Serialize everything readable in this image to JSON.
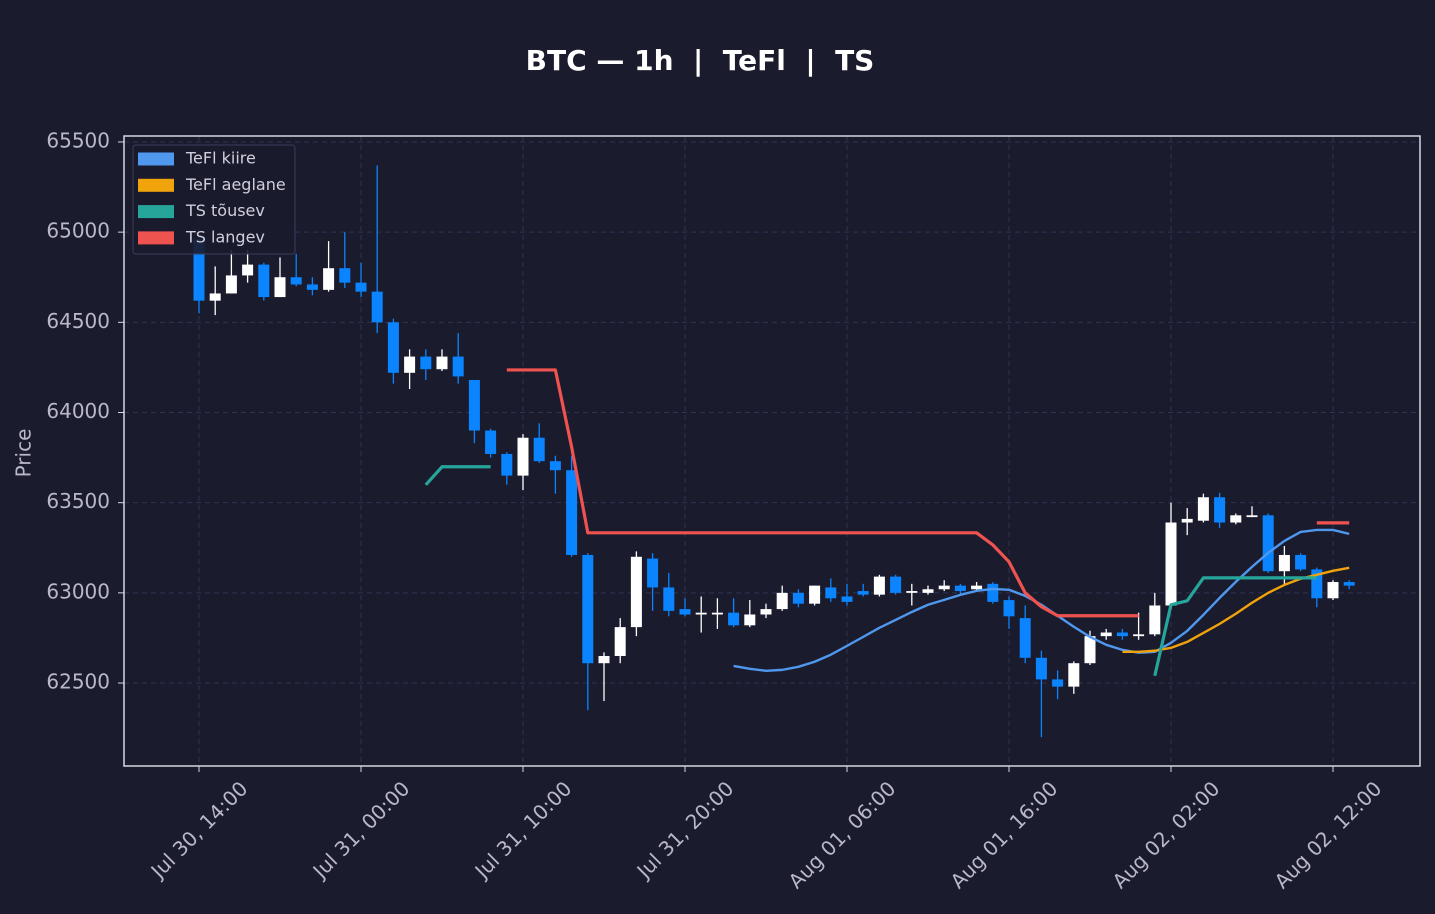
{
  "chart_data": {
    "type": "candlestick",
    "title": "BTC — 1h  |  TeFl  |  TS",
    "ylabel": "Price",
    "x": [
      "Jul 30, 14:00",
      "Jul 30, 15:00",
      "Jul 30, 16:00",
      "Jul 30, 17:00",
      "Jul 30, 18:00",
      "Jul 30, 19:00",
      "Jul 30, 20:00",
      "Jul 30, 21:00",
      "Jul 30, 22:00",
      "Jul 30, 23:00",
      "Jul 31, 00:00",
      "Jul 31, 01:00",
      "Jul 31, 02:00",
      "Jul 31, 03:00",
      "Jul 31, 04:00",
      "Jul 31, 05:00",
      "Jul 31, 06:00",
      "Jul 31, 07:00",
      "Jul 31, 08:00",
      "Jul 31, 09:00",
      "Jul 31, 10:00",
      "Jul 31, 11:00",
      "Jul 31, 12:00",
      "Jul 31, 13:00",
      "Jul 31, 14:00",
      "Jul 31, 15:00",
      "Jul 31, 16:00",
      "Jul 31, 17:00",
      "Jul 31, 18:00",
      "Jul 31, 19:00",
      "Jul 31, 20:00",
      "Jul 31, 21:00",
      "Jul 31, 22:00",
      "Jul 31, 23:00",
      "Aug 01, 00:00",
      "Aug 01, 01:00",
      "Aug 01, 02:00",
      "Aug 01, 03:00",
      "Aug 01, 04:00",
      "Aug 01, 05:00",
      "Aug 01, 06:00",
      "Aug 01, 07:00",
      "Aug 01, 08:00",
      "Aug 01, 09:00",
      "Aug 01, 10:00",
      "Aug 01, 11:00",
      "Aug 01, 12:00",
      "Aug 01, 13:00",
      "Aug 01, 14:00",
      "Aug 01, 15:00",
      "Aug 01, 16:00",
      "Aug 01, 17:00",
      "Aug 01, 18:00",
      "Aug 01, 19:00",
      "Aug 01, 20:00",
      "Aug 01, 21:00",
      "Aug 01, 22:00",
      "Aug 01, 23:00",
      "Aug 02, 00:00",
      "Aug 02, 01:00",
      "Aug 02, 02:00",
      "Aug 02, 03:00",
      "Aug 02, 04:00",
      "Aug 02, 05:00",
      "Aug 02, 06:00",
      "Aug 02, 07:00",
      "Aug 02, 08:00",
      "Aug 02, 09:00",
      "Aug 02, 10:00",
      "Aug 02, 11:00",
      "Aug 02, 12:00",
      "Aug 02, 13:00"
    ],
    "open": [
      64960,
      64620,
      64660,
      64760,
      64820,
      64640,
      64750,
      64710,
      64680,
      64800,
      64720,
      64670,
      64500,
      64220,
      64310,
      64240,
      64310,
      64180,
      63900,
      63770,
      63650,
      63860,
      63730,
      63680,
      63210,
      62610,
      62650,
      62810,
      63190,
      63030,
      62910,
      62880,
      62880,
      62890,
      62820,
      62880,
      62910,
      63000,
      62940,
      63030,
      62980,
      63010,
      62990,
      63090,
      63000,
      63000,
      63020,
      63040,
      63020,
      63050,
      62960,
      62860,
      62640,
      62520,
      62480,
      62610,
      62760,
      62780,
      62760,
      62770,
      62930,
      63390,
      63400,
      63530,
      63390,
      63420,
      63430,
      63120,
      63210,
      63130,
      62970,
      63060
    ],
    "high": [
      64980,
      64810,
      64900,
      64900,
      64830,
      64860,
      64880,
      64750,
      64950,
      65000,
      64830,
      65370,
      64520,
      64350,
      64350,
      64350,
      64440,
      64180,
      63910,
      63780,
      63880,
      63940,
      63760,
      63760,
      63220,
      62670,
      62860,
      63230,
      63220,
      63110,
      62970,
      62980,
      62970,
      62970,
      62960,
      62940,
      63040,
      63020,
      63040,
      63080,
      63050,
      63050,
      63100,
      63100,
      63050,
      63040,
      63070,
      63050,
      63060,
      63060,
      62980,
      62930,
      62680,
      62570,
      62620,
      62790,
      62800,
      62800,
      62890,
      63000,
      63500,
      63470,
      63550,
      63555,
      63440,
      63480,
      63440,
      63260,
      63220,
      63140,
      63070,
      63070
    ],
    "low": [
      64550,
      64540,
      64660,
      64720,
      64620,
      64640,
      64700,
      64650,
      64670,
      64690,
      64640,
      64440,
      64160,
      64130,
      64180,
      64230,
      64160,
      63830,
      63750,
      63600,
      63570,
      63720,
      63550,
      63200,
      62350,
      62400,
      62610,
      62760,
      62900,
      62870,
      62870,
      62780,
      62800,
      62810,
      62810,
      62860,
      62900,
      62920,
      62930,
      62950,
      62930,
      62980,
      62980,
      62990,
      62930,
      62990,
      63010,
      62990,
      63010,
      62940,
      62800,
      62610,
      62200,
      62410,
      62440,
      62600,
      62740,
      62740,
      62740,
      62760,
      62910,
      63320,
      63390,
      63360,
      63380,
      63420,
      63110,
      63040,
      63120,
      62920,
      62960,
      63020
    ],
    "close": [
      64620,
      64660,
      64760,
      64820,
      64640,
      64750,
      64710,
      64680,
      64800,
      64720,
      64670,
      64500,
      64220,
      64310,
      64240,
      64310,
      64200,
      63900,
      63770,
      63650,
      63860,
      63730,
      63680,
      63210,
      62610,
      62650,
      62810,
      63200,
      63030,
      62900,
      62880,
      62890,
      62890,
      62820,
      62880,
      62910,
      63000,
      62940,
      63040,
      62970,
      62950,
      62990,
      63090,
      63000,
      63010,
      63020,
      63040,
      63010,
      63040,
      62950,
      62870,
      62640,
      62520,
      62480,
      62610,
      62760,
      62780,
      62760,
      62770,
      62930,
      63390,
      63410,
      63530,
      63390,
      63430,
      63430,
      63120,
      63210,
      63130,
      62970,
      63060,
      63040
    ],
    "up_color": "#ffffff",
    "down_color": "#0a84ff",
    "series": [
      {
        "name": "TeFl kiire",
        "color": "#4f98ee",
        "values": [
          null,
          null,
          null,
          null,
          null,
          null,
          null,
          null,
          null,
          null,
          null,
          null,
          null,
          null,
          null,
          null,
          null,
          null,
          null,
          null,
          null,
          null,
          null,
          null,
          null,
          null,
          null,
          null,
          null,
          null,
          null,
          null,
          null,
          62595,
          62579,
          62568,
          62573,
          62590,
          62618,
          62657,
          62706,
          62756,
          62806,
          62850,
          62894,
          62934,
          62961,
          62989,
          63011,
          63022,
          63017,
          62983,
          62934,
          62873,
          62812,
          62756,
          62712,
          62684,
          62668,
          62673,
          62723,
          62789,
          62878,
          62972,
          63061,
          63144,
          63222,
          63288,
          63338,
          63349,
          63349,
          63327
        ]
      },
      {
        "name": "TeFl aeglane",
        "color": "#f0a30a",
        "values": [
          null,
          null,
          null,
          null,
          null,
          null,
          null,
          null,
          null,
          null,
          null,
          null,
          null,
          null,
          null,
          null,
          null,
          null,
          null,
          null,
          null,
          null,
          null,
          null,
          null,
          null,
          null,
          null,
          null,
          null,
          null,
          null,
          null,
          null,
          null,
          null,
          null,
          null,
          null,
          null,
          null,
          null,
          null,
          null,
          null,
          null,
          null,
          null,
          null,
          null,
          null,
          null,
          null,
          null,
          null,
          null,
          null,
          62673,
          62673,
          62679,
          62695,
          62728,
          62778,
          62828,
          62884,
          62945,
          63000,
          63044,
          63078,
          63100,
          63122,
          63139
        ]
      },
      {
        "name": "TS tõusev",
        "color": "#26a69a",
        "values": [
          null,
          null,
          null,
          null,
          null,
          null,
          null,
          null,
          null,
          null,
          null,
          null,
          null,
          null,
          63599,
          63699,
          63699,
          63699,
          63699,
          null,
          null,
          null,
          null,
          null,
          null,
          null,
          null,
          null,
          null,
          null,
          null,
          null,
          null,
          null,
          null,
          null,
          null,
          null,
          null,
          null,
          null,
          null,
          null,
          null,
          null,
          null,
          null,
          null,
          null,
          null,
          null,
          null,
          null,
          null,
          null,
          null,
          null,
          null,
          null,
          62540,
          62934,
          62956,
          63083,
          63083,
          63083,
          63083,
          63083,
          63083,
          63083,
          63083,
          null,
          null
        ]
      },
      {
        "name": "TS langev",
        "color": "#ef5350",
        "values": [
          null,
          null,
          null,
          null,
          null,
          null,
          null,
          null,
          null,
          null,
          null,
          null,
          null,
          null,
          null,
          null,
          null,
          null,
          null,
          64236,
          64236,
          64236,
          64236,
          63809,
          63333,
          63333,
          63333,
          63333,
          63333,
          63333,
          63333,
          63333,
          63333,
          63333,
          63333,
          63333,
          63333,
          63333,
          63333,
          63333,
          63333,
          63333,
          63333,
          63333,
          63333,
          63333,
          63333,
          63333,
          63333,
          63266,
          63172,
          63000,
          62923,
          62873,
          62873,
          62873,
          62873,
          62873,
          62873,
          null,
          null,
          null,
          null,
          null,
          null,
          null,
          null,
          null,
          null,
          63388,
          63388,
          63388
        ]
      }
    ],
    "xticks": [
      "Jul 30, 14:00",
      "Jul 31, 00:00",
      "Jul 31, 10:00",
      "Jul 31, 20:00",
      "Aug 01, 06:00",
      "Aug 01, 16:00",
      "Aug 02, 02:00",
      "Aug 02, 12:00"
    ],
    "ylim": [
      62040,
      65533
    ],
    "yticks": [
      62500,
      63000,
      63500,
      64000,
      64500,
      65000,
      65500
    ],
    "grid": true,
    "legend": "upper left"
  }
}
